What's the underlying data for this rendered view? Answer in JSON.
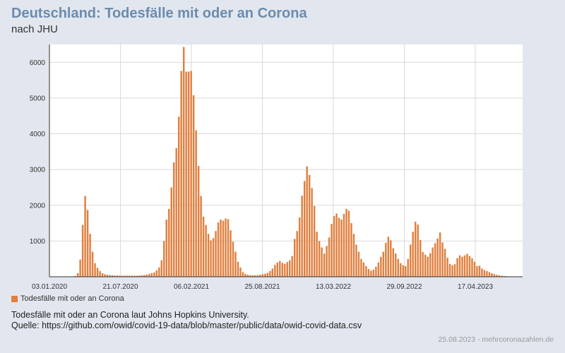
{
  "header": {
    "title": "Deutschland: Todesfälle mit oder an Corona",
    "subtitle": "nach JHU"
  },
  "legend": {
    "label": "Todesfälle mit oder an Corona"
  },
  "caption": {
    "line1": "Todesfälle mit oder an Corona laut Johns Hopkins University.",
    "line2": "Quelle: https://github.com/owid/covid-19-data/blob/master/public/data/owid-covid-data.csv"
  },
  "footer": {
    "text": "25.08.2023 - mehrcoronazahlen.de"
  },
  "colors": {
    "bar": "#e07f3e",
    "title": "#6b8cae",
    "background": "#e2e6ef",
    "plot": "#ffffff"
  },
  "chart_data": {
    "type": "bar",
    "title": "Deutschland: Todesfälle mit oder an Corona",
    "ylabel": "",
    "xlabel": "",
    "ylim": [
      0,
      6500
    ],
    "yticks": [
      1000,
      2000,
      3000,
      4000,
      5000,
      6000
    ],
    "xticks": [
      "03.01.2020",
      "21.07.2020",
      "06.02.2021",
      "25.08.2021",
      "13.03.2022",
      "29.09.2022",
      "17.04.2023"
    ],
    "series": [
      {
        "name": "Todesfälle mit oder an Corona",
        "values": [
          0,
          0,
          0,
          0,
          0,
          0,
          0,
          0,
          0,
          0,
          20,
          100,
          480,
          1450,
          2260,
          1870,
          1200,
          700,
          380,
          250,
          160,
          100,
          70,
          55,
          45,
          40,
          35,
          35,
          30,
          30,
          30,
          30,
          30,
          30,
          30,
          30,
          35,
          40,
          45,
          55,
          80,
          100,
          120,
          180,
          260,
          460,
          1000,
          1600,
          1900,
          2500,
          3200,
          3600,
          4480,
          5760,
          6430,
          5740,
          5740,
          5760,
          5080,
          4100,
          3100,
          2260,
          1680,
          1450,
          1200,
          1020,
          1080,
          1280,
          1520,
          1600,
          1570,
          1630,
          1610,
          1300,
          980,
          700,
          420,
          260,
          130,
          80,
          55,
          45,
          40,
          40,
          45,
          55,
          70,
          85,
          110,
          160,
          230,
          330,
          400,
          440,
          390,
          360,
          410,
          460,
          580,
          1060,
          1280,
          1660,
          2270,
          2680,
          3090,
          2850,
          2480,
          1980,
          1260,
          1000,
          820,
          650,
          860,
          1100,
          1480,
          1700,
          1770,
          1650,
          1600,
          1760,
          1900,
          1850,
          1500,
          1200,
          900,
          700,
          500,
          400,
          300,
          220,
          170,
          200,
          280,
          400,
          560,
          700,
          950,
          1120,
          1020,
          800,
          650,
          500,
          380,
          320,
          300,
          500,
          900,
          1260,
          1540,
          1460,
          1030,
          690,
          620,
          560,
          660,
          820,
          940,
          1070,
          1240,
          960,
          780,
          530,
          360,
          320,
          350,
          520,
          600,
          560,
          600,
          640,
          580,
          520,
          420,
          300,
          310,
          230,
          190,
          160,
          130,
          100,
          75,
          55,
          40,
          28,
          20,
          15,
          10,
          8,
          5,
          4,
          3,
          2
        ]
      }
    ]
  }
}
